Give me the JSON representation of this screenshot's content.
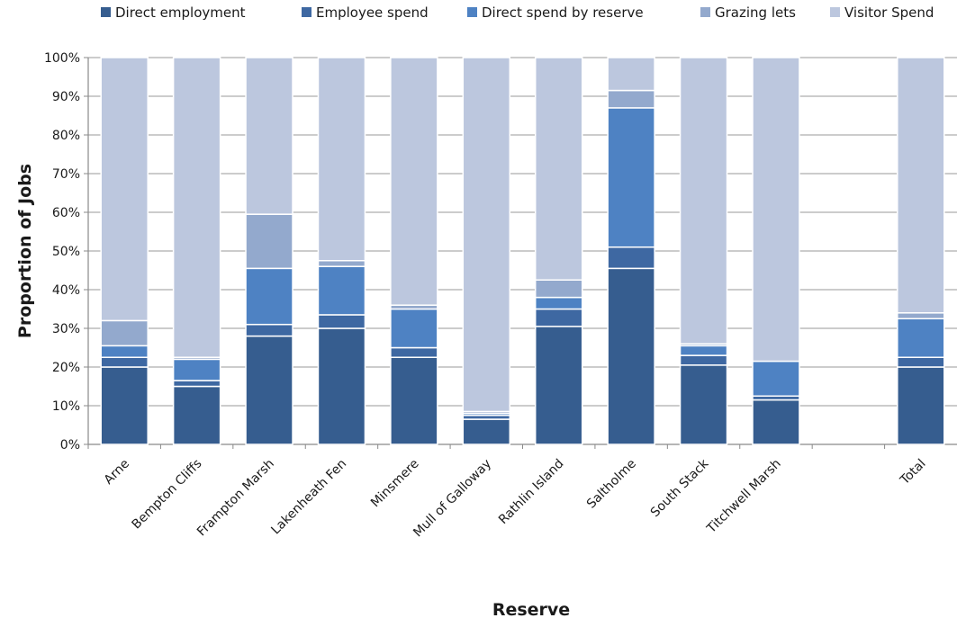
{
  "chart_data": {
    "type": "bar",
    "stacked": true,
    "normalized": true,
    "title": "",
    "xlabel": "Reserve",
    "ylabel": "Proportion of Jobs",
    "ylim": [
      0,
      100
    ],
    "yticks": [
      "0%",
      "10%",
      "20%",
      "30%",
      "40%",
      "50%",
      "60%",
      "70%",
      "80%",
      "90%",
      "100%"
    ],
    "grid": true,
    "legend_position": "top",
    "categories": [
      "Arne",
      "Bempton Cliffs",
      "Frampton Marsh",
      "Lakenheath Fen",
      "Minsmere",
      "Mull of Galloway",
      "Rathlin Island",
      "Saltholme",
      "South Stack",
      "Titchwell Marsh",
      "",
      "Total"
    ],
    "series": [
      {
        "name": "Direct employment",
        "color": "#365d8f",
        "values": [
          20,
          15,
          28,
          30,
          22.5,
          6.5,
          30.5,
          45.5,
          20.5,
          11.5,
          null,
          20
        ]
      },
      {
        "name": "Employee spend",
        "color": "#3e68a2",
        "values": [
          2.5,
          1.5,
          3,
          3.5,
          2.5,
          1,
          4.5,
          5.5,
          2.5,
          1,
          null,
          2.5
        ]
      },
      {
        "name": "Direct spend by reserve",
        "color": "#4e82c3",
        "values": [
          3,
          5.5,
          14.5,
          12.5,
          10,
          0.5,
          3,
          36,
          2.5,
          9,
          null,
          10
        ]
      },
      {
        "name": "Grazing lets",
        "color": "#93a9cd",
        "values": [
          6.5,
          0.5,
          14,
          1.5,
          1,
          0.5,
          4.5,
          4.5,
          0.5,
          0,
          null,
          1.5
        ]
      },
      {
        "name": "Visitor Spend",
        "color": "#bcc7de",
        "values": [
          68,
          77.5,
          40.5,
          52.5,
          64,
          91.5,
          57.5,
          8.5,
          74,
          78.5,
          null,
          66
        ]
      }
    ]
  }
}
